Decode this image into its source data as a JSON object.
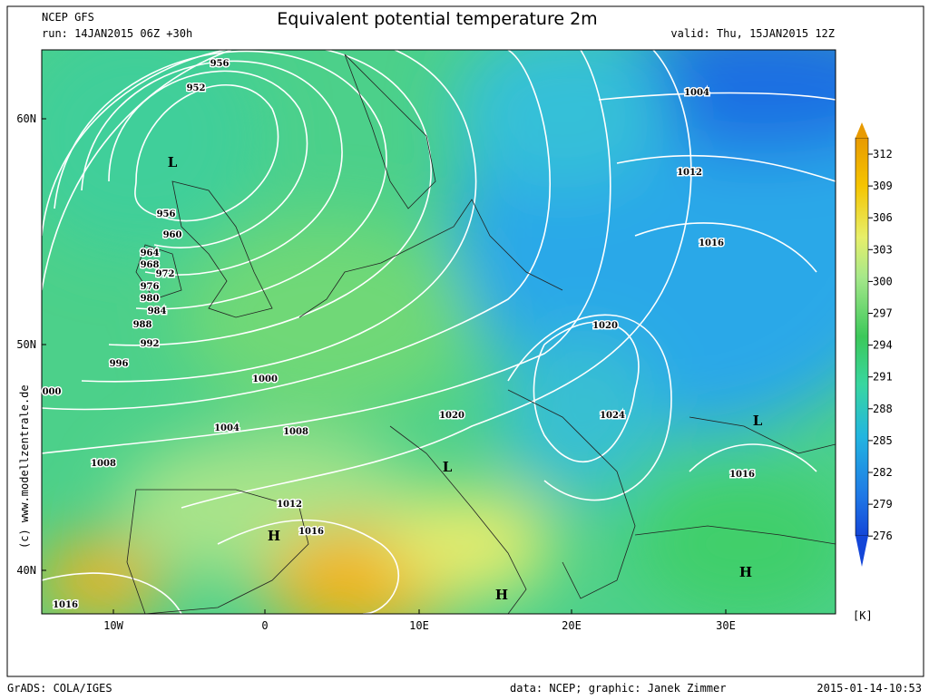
{
  "header": {
    "model": "NCEP GFS",
    "run": "run: 14JAN2015 06Z +30h",
    "title": "Equivalent potential temperature 2m",
    "valid": "valid: Thu, 15JAN2015 12Z"
  },
  "axes": {
    "x_labels": [
      "10W",
      "0",
      "10E",
      "20E",
      "30E"
    ],
    "y_labels": [
      "60N",
      "50N",
      "40N"
    ]
  },
  "colorbar": {
    "labels": [
      "312",
      "309",
      "306",
      "303",
      "300",
      "297",
      "294",
      "291",
      "288",
      "285",
      "282",
      "279",
      "276"
    ],
    "unit": "[K]"
  },
  "isobar_labels": [
    "956",
    "952",
    "956",
    "960",
    "964",
    "968",
    "972",
    "976",
    "980",
    "984",
    "988",
    "992",
    "996",
    "000",
    "1000",
    "1004",
    "1008",
    "1008",
    "1012",
    "1016",
    "1016",
    "1020",
    "1020",
    "1024",
    "1016",
    "1012",
    "1004",
    "1016"
  ],
  "pressure_centers": [
    "L",
    "L",
    "H",
    "H",
    "H",
    "L"
  ],
  "side_credit": "(c) www.modellzentrale.de",
  "footer": {
    "software": "GrADS: COLA/IGES",
    "credit": "data: NCEP; graphic: Janek Zimmer",
    "timestamp": "2015-01-14-10:53"
  }
}
